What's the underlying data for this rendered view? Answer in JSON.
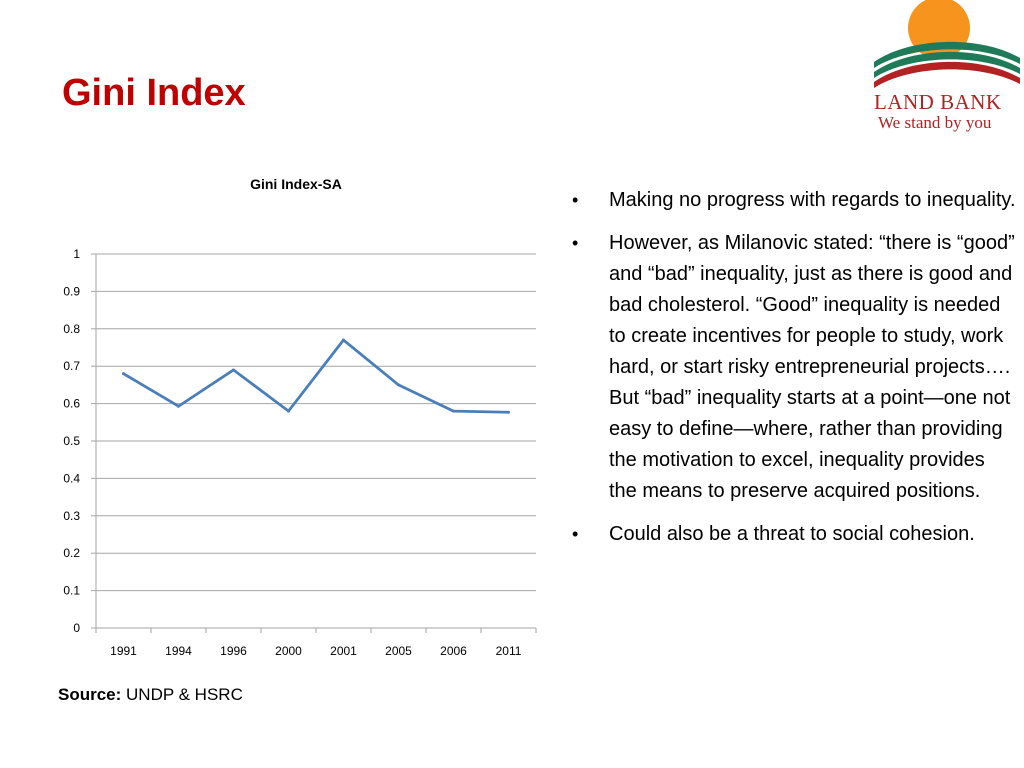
{
  "slide": {
    "title": "Gini Index",
    "logo": {
      "line1": "LAND BANK",
      "line2": "We stand by you"
    },
    "source_label": "Source:",
    "source_text": "UNDP & HSRC",
    "bullets": [
      "Making no progress with regards to inequality.",
      "However, as Milanovic stated: “there is “good” and “bad” inequality, just as there is good and bad cholesterol. “Good” inequality is needed to create incentives for people to study, work hard, or start risky entrepreneurial projects…. But “bad” inequality starts at a point—one not easy to define—where, rather than providing the motivation to excel, inequality provides the means to preserve acquired positions.",
      "Could also be a threat to social cohesion."
    ]
  },
  "colors": {
    "title": "#c00000",
    "line": "#4a7ebb",
    "grid": "#a6a6a6",
    "logo_sun": "#f7941d",
    "logo_stripe_green": "#1f7a5a",
    "logo_stripe_red": "#b22222"
  },
  "chart_data": {
    "type": "line",
    "title": "Gini Index-SA",
    "categories": [
      "1991",
      "1994",
      "1996",
      "2000",
      "2001",
      "2005",
      "2006",
      "2011"
    ],
    "series": [
      {
        "values": [
          0.68,
          0.593,
          0.69,
          0.58,
          0.77,
          0.65,
          0.58,
          0.577
        ]
      }
    ],
    "ylim": [
      0,
      1
    ],
    "yticks": [
      "0",
      "0.1",
      "0.2",
      "0.3",
      "0.4",
      "0.5",
      "0.6",
      "0.7",
      "0.8",
      "0.9",
      "1"
    ],
    "grid": true,
    "legend": "none"
  }
}
